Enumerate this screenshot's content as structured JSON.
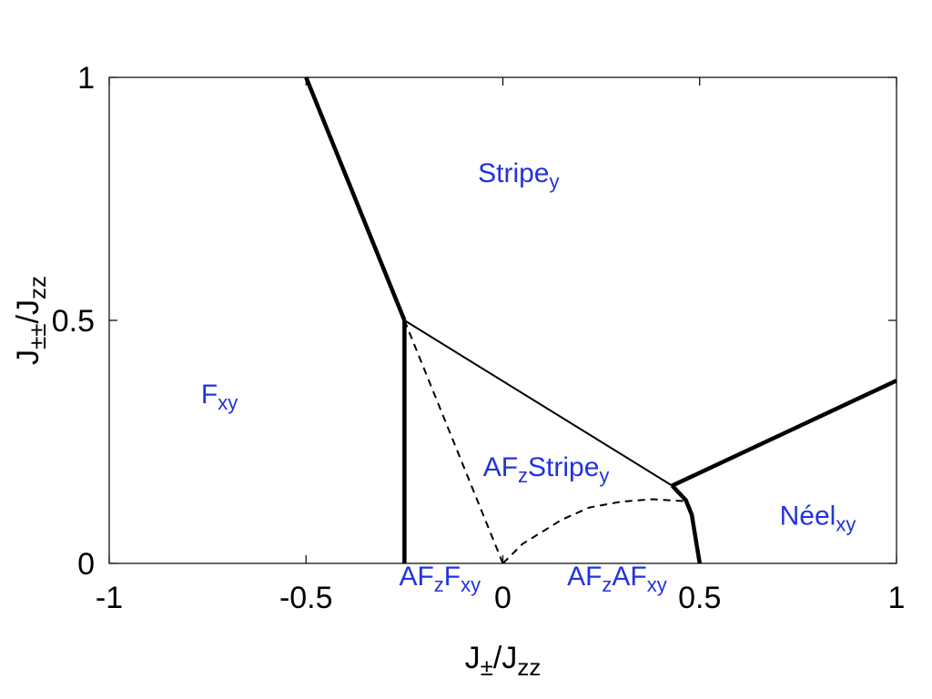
{
  "chart_data": {
    "type": "line",
    "title": "",
    "xlabel": {
      "base": "J",
      "sub1": "±",
      "mid": "/J",
      "sub2": "zz"
    },
    "ylabel": {
      "base": "J",
      "sub1": "±±",
      "mid": "/J",
      "sub2": "zz"
    },
    "xlim": [
      -1,
      1
    ],
    "ylim": [
      0,
      1
    ],
    "xticks": [
      -1,
      -0.5,
      0,
      0.5,
      1
    ],
    "xtick_labels": [
      "-1",
      "-0.5",
      "0",
      "0.5",
      "1"
    ],
    "yticks": [
      0,
      0.5,
      1
    ],
    "ytick_labels": [
      "0",
      "0.5",
      "1"
    ],
    "grid": false,
    "label_color": "#2233dd",
    "line_color": "#000000",
    "series": [
      {
        "style": "thick",
        "x": [
          -0.5,
          -0.25
        ],
        "y": [
          1.0,
          0.5
        ]
      },
      {
        "style": "thick",
        "x": [
          -0.25,
          -0.25
        ],
        "y": [
          0.5,
          0.0
        ]
      },
      {
        "style": "thin",
        "x": [
          -0.25,
          0.43
        ],
        "y": [
          0.5,
          0.16
        ]
      },
      {
        "style": "thick",
        "x": [
          0.43,
          1.0
        ],
        "y": [
          0.16,
          0.376
        ]
      },
      {
        "style": "thick",
        "x": [
          0.43,
          0.465,
          0.48,
          0.49,
          0.5
        ],
        "y": [
          0.16,
          0.13,
          0.1,
          0.05,
          0.0
        ]
      },
      {
        "style": "dashed",
        "x": [
          -0.25,
          0.0
        ],
        "y": [
          0.5,
          0.0
        ]
      },
      {
        "style": "dashed",
        "x": [
          0.0,
          0.05,
          0.15,
          0.22,
          0.3,
          0.38,
          0.46
        ],
        "y": [
          0.0,
          0.04,
          0.09,
          0.115,
          0.127,
          0.132,
          0.128
        ]
      }
    ],
    "annotations": [
      {
        "base": "Stripe",
        "sub": "y",
        "x": 0.04,
        "y": 0.785
      },
      {
        "base": "F",
        "sub": "xy",
        "x": -0.72,
        "y": 0.33
      },
      {
        "parts": [
          [
            "AF",
            ""
          ],
          [
            "z",
            "sub"
          ],
          [
            "Stripe",
            ""
          ],
          [
            "y",
            "sub"
          ]
        ],
        "x": 0.11,
        "y": 0.18
      },
      {
        "parts": [
          [
            "Néel",
            ""
          ],
          [
            "xy",
            "sub"
          ]
        ],
        "x": 0.8,
        "y": 0.08
      },
      {
        "parts": [
          [
            "AF",
            ""
          ],
          [
            "z",
            "sub"
          ],
          [
            "F",
            ""
          ],
          [
            "xy",
            "sub"
          ]
        ],
        "x": -0.16,
        "y": -0.045
      },
      {
        "parts": [
          [
            "AF",
            ""
          ],
          [
            "z",
            "sub"
          ],
          [
            "AF",
            ""
          ],
          [
            "xy",
            "sub"
          ]
        ],
        "x": 0.29,
        "y": -0.045
      }
    ]
  }
}
